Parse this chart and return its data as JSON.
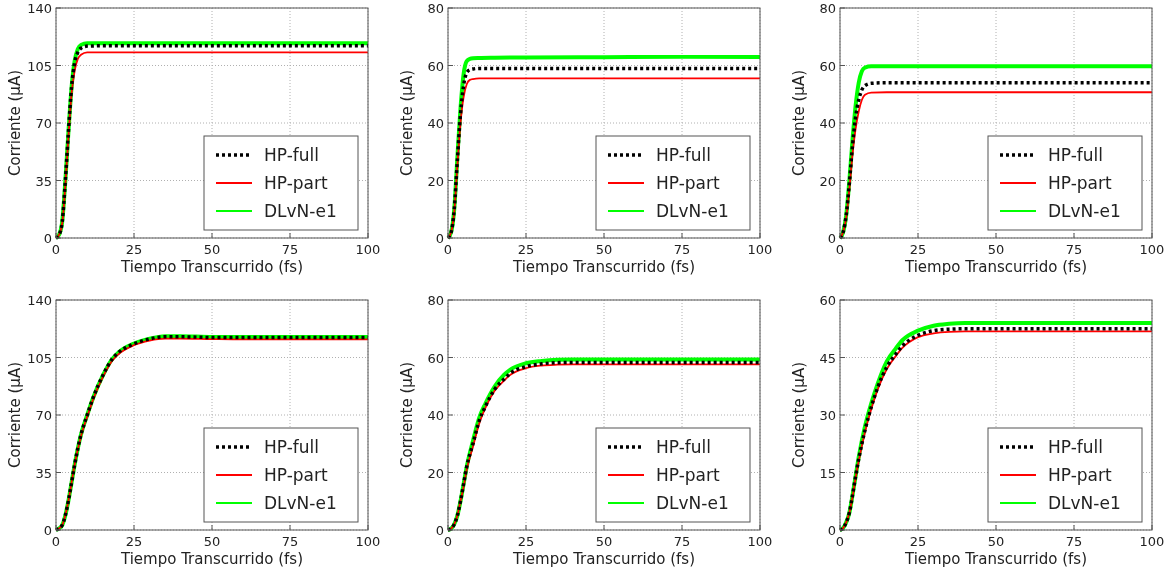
{
  "chart_data": [
    {
      "type": "line",
      "xlabel": "Tiempo Transcurrido (fs)",
      "ylabel": "Corriente (μA)",
      "xlim": [
        0,
        100
      ],
      "xticks": [
        0,
        25,
        50,
        75,
        100
      ],
      "ylim": [
        0,
        140
      ],
      "yticks": [
        0,
        35,
        70,
        105,
        140
      ],
      "grid": true,
      "legend": "bottom right",
      "x": [
        0,
        1,
        2,
        3,
        4,
        5,
        6,
        7,
        8,
        10,
        15,
        25,
        50,
        75,
        100
      ],
      "series": [
        {
          "name": "HP-full",
          "color": "#000000",
          "line_style": "dotted",
          "values": [
            0,
            2,
            10,
            35,
            65,
            92,
            107,
            113,
            115.5,
            116.8,
            117,
            117,
            117,
            117,
            117
          ]
        },
        {
          "name": "HP-part",
          "color": "#ff0000",
          "line_style": "solid",
          "values": [
            0,
            2,
            9,
            32,
            62,
            88,
            102,
            109,
            111.5,
            113,
            113,
            113,
            113,
            113,
            113
          ]
        },
        {
          "name": "DLvN-e1",
          "color": "#00ff00",
          "line_style": "solid",
          "values": [
            0,
            2,
            10,
            35,
            65,
            92,
            108,
            115,
            117.5,
            118.5,
            118.5,
            118.5,
            118.5,
            118.5,
            118.5
          ]
        }
      ]
    },
    {
      "type": "line",
      "xlabel": "Tiempo Transcurrido (fs)",
      "ylabel": "Corriente (μA)",
      "xlim": [
        0,
        100
      ],
      "xticks": [
        0,
        25,
        50,
        75,
        100
      ],
      "ylim": [
        0,
        80
      ],
      "yticks": [
        0,
        20,
        40,
        60,
        80
      ],
      "grid": true,
      "legend": "bottom right",
      "x": [
        0,
        1,
        2,
        3,
        4,
        5,
        6,
        7,
        8,
        10,
        15,
        25,
        50,
        75,
        100
      ],
      "series": [
        {
          "name": "HP-full",
          "color": "#000000",
          "line_style": "dotted",
          "values": [
            0,
            2,
            10,
            27,
            43,
            53,
            57.5,
            58.5,
            58.8,
            59,
            59,
            59,
            59,
            59,
            59
          ]
        },
        {
          "name": "HP-part",
          "color": "#ff0000",
          "line_style": "solid",
          "values": [
            0,
            2,
            9,
            25,
            40,
            49,
            53.5,
            55,
            55.3,
            55.5,
            55.5,
            55.5,
            55.5,
            55.5,
            55.5
          ]
        },
        {
          "name": "DLvN-e1",
          "color": "#00ff00",
          "line_style": "solid",
          "values": [
            0,
            2,
            10,
            28,
            45,
            57,
            61.5,
            62.3,
            62.5,
            62.6,
            62.7,
            62.8,
            62.9,
            63,
            63
          ]
        }
      ]
    },
    {
      "type": "line",
      "xlabel": "Tiempo Transcurrido (fs)",
      "ylabel": "Corriente (μA)",
      "xlim": [
        0,
        100
      ],
      "xticks": [
        0,
        25,
        50,
        75,
        100
      ],
      "ylim": [
        0,
        80
      ],
      "yticks": [
        0,
        20,
        40,
        60,
        80
      ],
      "grid": true,
      "legend": "bottom right",
      "x": [
        0,
        1,
        2,
        3,
        4,
        5,
        6,
        7,
        8,
        10,
        15,
        25,
        50,
        75,
        100
      ],
      "series": [
        {
          "name": "HP-full",
          "color": "#000000",
          "line_style": "dotted",
          "values": [
            0,
            2,
            8,
            19,
            32,
            42,
            48,
            51.5,
            53,
            53.8,
            54,
            54,
            54,
            54,
            54
          ]
        },
        {
          "name": "HP-part",
          "color": "#ff0000",
          "line_style": "solid",
          "values": [
            0,
            2,
            7,
            17,
            29,
            38,
            44,
            48,
            49.8,
            50.6,
            50.7,
            50.7,
            50.7,
            50.7,
            50.7
          ]
        },
        {
          "name": "DLvN-e1",
          "color": "#00ff00",
          "line_style": "solid",
          "values": [
            0,
            2,
            8,
            20,
            34,
            46,
            54,
            58,
            59.3,
            59.7,
            59.7,
            59.7,
            59.7,
            59.7,
            59.7
          ]
        }
      ]
    },
    {
      "type": "line",
      "xlabel": "Tiempo Transcurrido (fs)",
      "ylabel": "Corriente (μA)",
      "xlim": [
        0,
        100
      ],
      "xticks": [
        0,
        25,
        50,
        75,
        100
      ],
      "ylim": [
        0,
        140
      ],
      "yticks": [
        0,
        35,
        70,
        105,
        140
      ],
      "grid": true,
      "legend": "bottom right",
      "x": [
        0,
        1,
        2,
        3,
        4,
        5,
        6,
        8,
        10,
        12,
        15,
        18,
        20,
        25,
        30,
        35,
        40,
        50,
        60,
        75,
        100
      ],
      "series": [
        {
          "name": "HP-full",
          "color": "#000000",
          "line_style": "dotted",
          "values": [
            0,
            1,
            3,
            9,
            18,
            29,
            40,
            58,
            70,
            81,
            94,
            104,
            108,
            113.3,
            116.3,
            117.6,
            117.6,
            117.2,
            117.2,
            117.2,
            117.2
          ]
        },
        {
          "name": "HP-part",
          "color": "#ff0000",
          "line_style": "solid",
          "values": [
            0,
            1,
            3,
            9,
            18,
            29,
            40,
            57,
            69,
            80,
            93,
            103,
            107,
            112.5,
            115.3,
            116.5,
            116.5,
            116.2,
            116,
            116,
            116
          ]
        },
        {
          "name": "DLvN-e1",
          "color": "#00ff00",
          "line_style": "solid",
          "values": [
            0,
            1,
            3,
            9,
            18,
            29,
            40,
            58,
            70,
            81,
            94,
            104,
            108,
            113.5,
            116.5,
            118,
            118,
            117.5,
            117.5,
            117.5,
            117.5
          ]
        }
      ]
    },
    {
      "type": "line",
      "xlabel": "Tiempo Transcurrido (fs)",
      "ylabel": "Corriente (μA)",
      "xlim": [
        0,
        100
      ],
      "xticks": [
        0,
        25,
        50,
        75,
        100
      ],
      "ylim": [
        0,
        80
      ],
      "yticks": [
        0,
        20,
        40,
        60,
        80
      ],
      "grid": true,
      "legend": "bottom right",
      "x": [
        0,
        1,
        2,
        3,
        4,
        5,
        6,
        8,
        10,
        12,
        15,
        18,
        20,
        25,
        30,
        35,
        40,
        50,
        60,
        75,
        100
      ],
      "series": [
        {
          "name": "HP-full",
          "color": "#000000",
          "line_style": "dotted",
          "values": [
            0,
            0.5,
            2,
            5,
            10,
            16,
            22,
            30,
            38,
            43,
            49,
            52.5,
            54.5,
            56.8,
            57.8,
            58.2,
            58.3,
            58.3,
            58.3,
            58.3,
            58.3
          ]
        },
        {
          "name": "HP-part",
          "color": "#ff0000",
          "line_style": "solid",
          "values": [
            0,
            0.5,
            2,
            5,
            10,
            15,
            21,
            29,
            37,
            42.5,
            48.5,
            52,
            54,
            56.3,
            57.2,
            57.5,
            57.6,
            57.6,
            57.6,
            57.6,
            57.6
          ]
        },
        {
          "name": "DLvN-e1",
          "color": "#00ff00",
          "line_style": "solid",
          "values": [
            0,
            0.5,
            2,
            5,
            10,
            16,
            22,
            31,
            39,
            44,
            50,
            54,
            55.8,
            58,
            58.8,
            59.2,
            59.3,
            59.3,
            59.3,
            59.3,
            59.3
          ]
        }
      ]
    },
    {
      "type": "line",
      "xlabel": "Tiempo Transcurrido (fs)",
      "ylabel": "Corriente (μA)",
      "xlim": [
        0,
        100
      ],
      "xticks": [
        0,
        25,
        50,
        75,
        100
      ],
      "ylim": [
        0,
        60
      ],
      "yticks": [
        0,
        15,
        30,
        45,
        60
      ],
      "grid": true,
      "legend": "bottom right",
      "x": [
        0,
        1,
        2,
        3,
        4,
        5,
        6,
        8,
        10,
        12,
        15,
        18,
        20,
        25,
        30,
        35,
        40,
        50,
        60,
        75,
        100
      ],
      "series": [
        {
          "name": "HP-full",
          "color": "#000000",
          "line_style": "dotted",
          "values": [
            0,
            0.5,
            2,
            4.5,
            9,
            14,
            18.5,
            26,
            32,
            37,
            42.5,
            46,
            48,
            50.8,
            52,
            52.4,
            52.5,
            52.5,
            52.5,
            52.5,
            52.5
          ]
        },
        {
          "name": "HP-part",
          "color": "#ff0000",
          "line_style": "solid",
          "values": [
            0,
            0.5,
            2,
            4.5,
            8.5,
            13.5,
            18,
            25.5,
            31.5,
            36.5,
            42,
            45.5,
            47.5,
            50.3,
            51.3,
            51.7,
            51.8,
            51.8,
            51.8,
            51.8,
            51.8
          ]
        },
        {
          "name": "DLvN-e1",
          "color": "#00ff00",
          "line_style": "solid",
          "values": [
            0,
            0.5,
            2,
            4.5,
            9,
            14,
            19,
            27,
            33,
            38,
            44,
            47.5,
            49.5,
            52,
            53.3,
            53.8,
            54,
            54,
            54,
            54,
            54
          ]
        }
      ]
    }
  ]
}
